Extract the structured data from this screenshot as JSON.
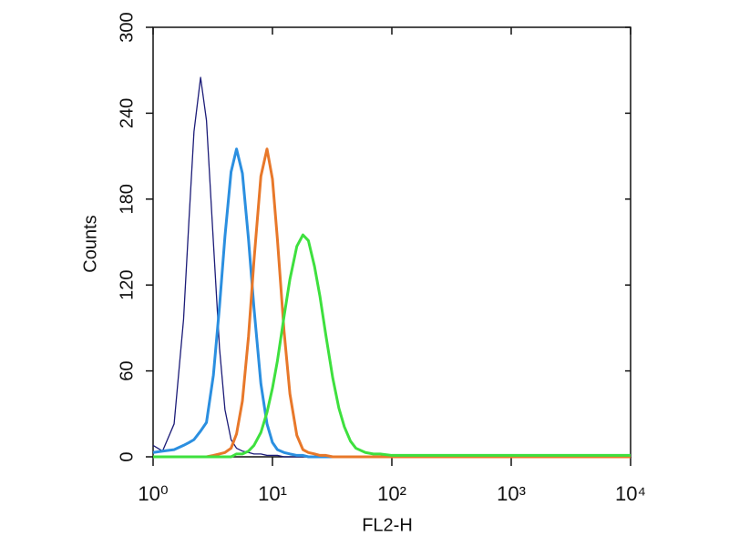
{
  "chart_data": {
    "type": "line",
    "xlabel": "FL2-H",
    "ylabel": "Counts",
    "x": [
      1,
      1.2,
      1.5,
      1.8,
      2,
      2.2,
      2.5,
      2.8,
      3.2,
      3.6,
      4,
      4.5,
      5,
      5.6,
      6.3,
      7,
      8,
      9,
      10,
      11,
      12.5,
      14,
      16,
      18,
      20,
      22.5,
      25,
      28,
      32,
      36,
      40,
      45,
      50,
      60,
      70,
      80,
      100,
      150,
      200,
      500,
      1000,
      2000,
      5000,
      10000
    ],
    "series": [
      {
        "color": "#1c1c78",
        "values": [
          8,
          4,
          23,
          96,
          166,
          227,
          265,
          235,
          150,
          76,
          33,
          12,
          6,
          4,
          3,
          2,
          2,
          1,
          1,
          1,
          0,
          0,
          0,
          0,
          0,
          0,
          0,
          0,
          0,
          0,
          0,
          0,
          0,
          0,
          0,
          0,
          0,
          0,
          0,
          0,
          0,
          0,
          0,
          0
        ]
      },
      {
        "color": "#2b8fe0",
        "values": [
          3,
          4,
          5,
          8,
          10,
          12,
          18,
          24,
          57,
          105,
          154,
          199,
          215,
          198,
          152,
          104,
          51,
          23,
          10,
          5,
          3,
          2,
          1,
          1,
          0,
          0,
          0,
          0,
          0,
          0,
          0,
          0,
          0,
          0,
          0,
          0,
          0,
          0,
          0,
          0,
          0,
          0,
          0,
          0
        ]
      },
      {
        "color": "#e8782a",
        "values": [
          0,
          0,
          0,
          0,
          0,
          0,
          0,
          0,
          1,
          2,
          3,
          6,
          16,
          39,
          84,
          137,
          196,
          215,
          194,
          152,
          88,
          44,
          15,
          5,
          3,
          2,
          1,
          1,
          0,
          0,
          0,
          0,
          0,
          0,
          0,
          0,
          0,
          0,
          0,
          0,
          0,
          0,
          0,
          0
        ]
      },
      {
        "color": "#3ee03e",
        "values": [
          0,
          0,
          0,
          0,
          0,
          0,
          0,
          0,
          0,
          0,
          0,
          0,
          2,
          2,
          4,
          8,
          17,
          31,
          48,
          67,
          98,
          124,
          147,
          155,
          151,
          133,
          112,
          85,
          55,
          34,
          21,
          11,
          6,
          3,
          2,
          2,
          1,
          1,
          1,
          1,
          1,
          1,
          1,
          1
        ]
      }
    ],
    "xscale": "log",
    "xlim": [
      1,
      10000
    ],
    "xticks": [
      {
        "value": 1,
        "label": "10⁰"
      },
      {
        "value": 10,
        "label": "10¹"
      },
      {
        "value": 100,
        "label": "10²"
      },
      {
        "value": 1000,
        "label": "10³"
      },
      {
        "value": 10000,
        "label": "10⁴"
      }
    ],
    "ylim": [
      0,
      300
    ],
    "yticks": [
      0,
      60,
      120,
      180,
      240,
      300
    ]
  }
}
